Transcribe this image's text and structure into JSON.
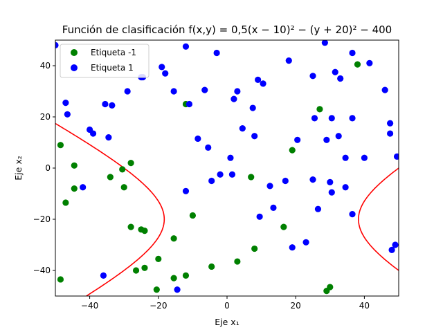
{
  "chart_data": {
    "type": "scatter",
    "title": "Función de clasificación f(x,y) = 0,5(x − 10)² − (y + 20)² − 400",
    "xlabel": "Eje x₁",
    "ylabel": "Eje x₂",
    "xlim": [
      -50,
      50
    ],
    "ylim": [
      -50,
      50
    ],
    "xticks": [
      -40,
      -20,
      0,
      20,
      40
    ],
    "yticks": [
      -40,
      -20,
      0,
      20,
      40
    ],
    "grid": false,
    "legend_position": "top-left",
    "series": [
      {
        "name": "Etiqueta -1",
        "color": "#008000",
        "points": [
          [
            -48.5,
            9
          ],
          [
            -47,
            -13.5
          ],
          [
            -44.5,
            1
          ],
          [
            -44.5,
            -8
          ],
          [
            -48.5,
            -43.5
          ],
          [
            -34,
            -3.5
          ],
          [
            -30.5,
            -0.5
          ],
          [
            -30,
            -7.5
          ],
          [
            -28,
            2
          ],
          [
            -28,
            -23
          ],
          [
            -25,
            -24
          ],
          [
            -24,
            -24.5
          ],
          [
            -26.5,
            -40
          ],
          [
            -24,
            -39
          ],
          [
            -20,
            -35.5
          ],
          [
            -15.5,
            -27.5
          ],
          [
            -12,
            25
          ],
          [
            -10,
            -18.5
          ],
          [
            -15.5,
            -43
          ],
          [
            -12,
            -42
          ],
          [
            -20.5,
            -47.5
          ],
          [
            -4.5,
            -38.5
          ],
          [
            3,
            -36.5
          ],
          [
            7,
            -3.5
          ],
          [
            8,
            -31.5
          ],
          [
            16.5,
            -23
          ],
          [
            19,
            7
          ],
          [
            27,
            23
          ],
          [
            38,
            40.5
          ],
          [
            29,
            -48
          ],
          [
            30,
            -46.5
          ]
        ]
      },
      {
        "name": "Etiqueta 1",
        "color": "#0000ff",
        "points": [
          [
            -50,
            48
          ],
          [
            -47,
            25.5
          ],
          [
            -46.5,
            21
          ],
          [
            -42,
            -7.5
          ],
          [
            -40,
            15
          ],
          [
            -39,
            13.5
          ],
          [
            -35.5,
            25
          ],
          [
            -34.5,
            12
          ],
          [
            -33.5,
            24.5
          ],
          [
            -29,
            30
          ],
          [
            -25,
            35.5
          ],
          [
            -19,
            39.5
          ],
          [
            -18,
            37
          ],
          [
            -15.5,
            30
          ],
          [
            -12,
            47.5
          ],
          [
            -11,
            25
          ],
          [
            -12,
            -9
          ],
          [
            -8.5,
            11.5
          ],
          [
            -6.5,
            30.5
          ],
          [
            -5.5,
            8
          ],
          [
            -4.5,
            -5
          ],
          [
            -3,
            45
          ],
          [
            -2,
            -2.5
          ],
          [
            1,
            4
          ],
          [
            1.5,
            -2.5
          ],
          [
            2,
            27
          ],
          [
            3,
            30
          ],
          [
            4.5,
            15.5
          ],
          [
            7.5,
            23.5
          ],
          [
            8,
            12.5
          ],
          [
            9,
            34.5
          ],
          [
            10.5,
            33
          ],
          [
            9.5,
            -19
          ],
          [
            12.5,
            -7
          ],
          [
            13.5,
            -15.5
          ],
          [
            17,
            -5
          ],
          [
            18,
            42
          ],
          [
            19,
            -31
          ],
          [
            20.5,
            11
          ],
          [
            23,
            -29
          ],
          [
            25,
            36
          ],
          [
            25.5,
            19.5
          ],
          [
            25,
            -4.5
          ],
          [
            26.5,
            -16
          ],
          [
            28.5,
            49
          ],
          [
            29,
            11
          ],
          [
            30,
            -5.5
          ],
          [
            30.5,
            -9.5
          ],
          [
            30.5,
            19.5
          ],
          [
            31.5,
            37.5
          ],
          [
            32.5,
            12.5
          ],
          [
            33,
            35
          ],
          [
            34.5,
            4
          ],
          [
            34.5,
            -7.5
          ],
          [
            36.5,
            19.5
          ],
          [
            36.5,
            45
          ],
          [
            36.5,
            -18
          ],
          [
            40,
            4
          ],
          [
            41.5,
            41
          ],
          [
            46,
            30.5
          ],
          [
            47.5,
            17.5
          ],
          [
            47.5,
            13.5
          ],
          [
            48,
            -32
          ],
          [
            49,
            -30
          ],
          [
            49.5,
            4.5
          ],
          [
            -14.5,
            -47.5
          ],
          [
            -36,
            -42
          ],
          [
            -24.5,
            35.5
          ]
        ]
      }
    ],
    "boundary": {
      "equation": "0.5(x-10)^2 - (y+20)^2 - 400 = 0",
      "color": "#ff0000"
    }
  }
}
